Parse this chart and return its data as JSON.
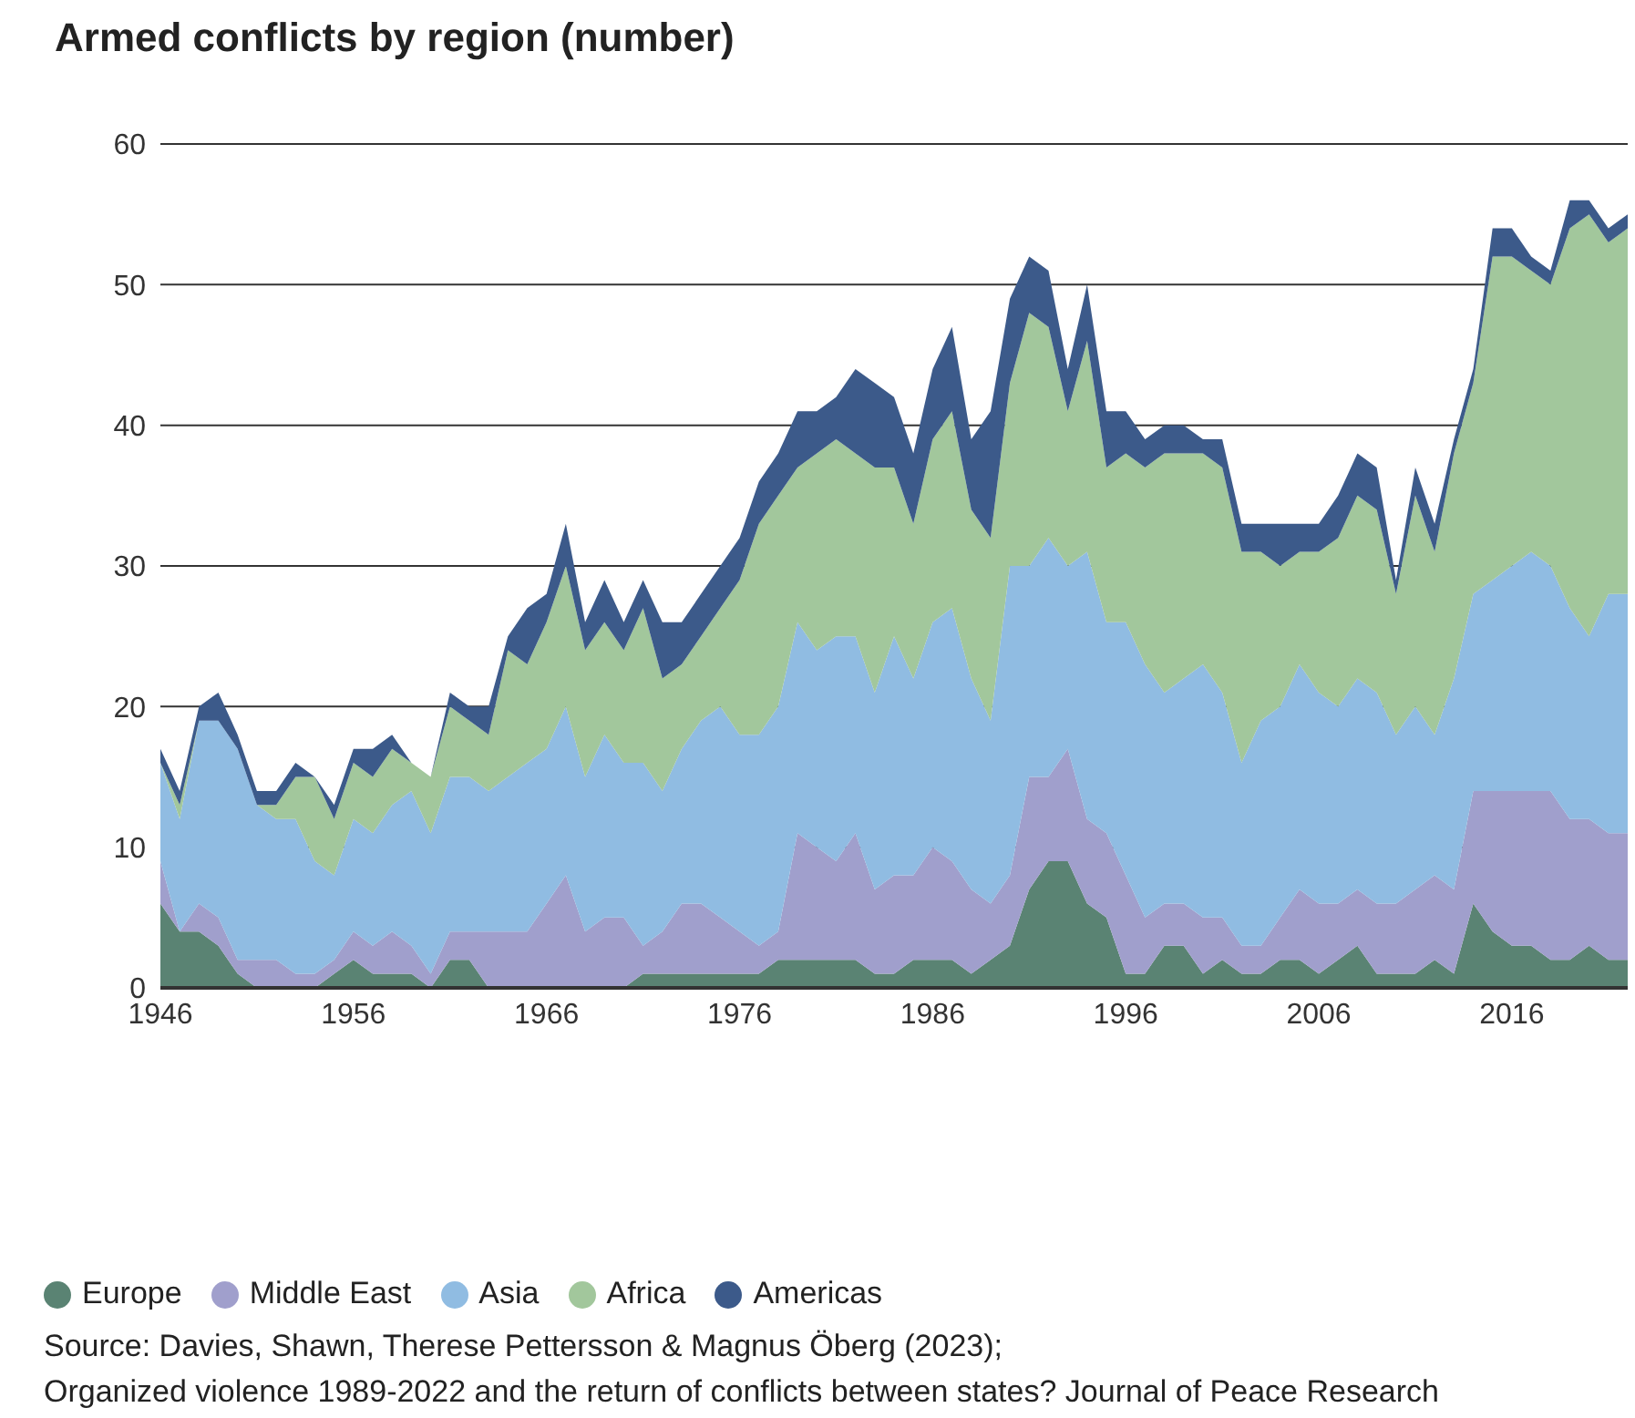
{
  "chart_data": {
    "type": "area",
    "stacked": true,
    "title": "Armed conflicts by region (number)",
    "x": [
      1946,
      1947,
      1948,
      1949,
      1950,
      1951,
      1952,
      1953,
      1954,
      1955,
      1956,
      1957,
      1958,
      1959,
      1960,
      1961,
      1962,
      1963,
      1964,
      1965,
      1966,
      1967,
      1968,
      1969,
      1970,
      1971,
      1972,
      1973,
      1974,
      1975,
      1976,
      1977,
      1978,
      1979,
      1980,
      1981,
      1982,
      1983,
      1984,
      1985,
      1986,
      1987,
      1988,
      1989,
      1990,
      1991,
      1992,
      1993,
      1994,
      1995,
      1996,
      1997,
      1998,
      1999,
      2000,
      2001,
      2002,
      2003,
      2004,
      2005,
      2006,
      2007,
      2008,
      2009,
      2010,
      2011,
      2012,
      2013,
      2014,
      2015,
      2016,
      2017,
      2018,
      2019,
      2020,
      2021,
      2022
    ],
    "series": [
      {
        "name": "Europe",
        "color": "#5a8373",
        "values": [
          6,
          4,
          4,
          3,
          1,
          0,
          0,
          0,
          0,
          1,
          2,
          1,
          1,
          1,
          0,
          2,
          2,
          0,
          0,
          0,
          0,
          0,
          0,
          0,
          0,
          1,
          1,
          1,
          1,
          1,
          1,
          1,
          2,
          2,
          2,
          2,
          2,
          1,
          1,
          2,
          2,
          2,
          1,
          2,
          3,
          7,
          9,
          9,
          6,
          5,
          1,
          1,
          3,
          3,
          1,
          2,
          1,
          1,
          2,
          2,
          1,
          2,
          3,
          1,
          1,
          1,
          2,
          1,
          6,
          4,
          3,
          3,
          2,
          2,
          3,
          2,
          2
        ]
      },
      {
        "name": "Middle East",
        "color": "#a09fcc",
        "values": [
          3,
          0,
          2,
          2,
          1,
          2,
          2,
          1,
          1,
          1,
          2,
          2,
          3,
          2,
          1,
          2,
          2,
          4,
          4,
          4,
          6,
          8,
          4,
          5,
          5,
          2,
          3,
          5,
          5,
          4,
          3,
          2,
          2,
          9,
          8,
          7,
          9,
          6,
          7,
          6,
          8,
          7,
          6,
          4,
          5,
          8,
          6,
          8,
          6,
          6,
          7,
          4,
          3,
          3,
          4,
          3,
          2,
          2,
          3,
          5,
          5,
          4,
          4,
          5,
          5,
          6,
          6,
          6,
          8,
          10,
          11,
          11,
          12,
          10,
          9,
          9,
          9
        ]
      },
      {
        "name": "Asia",
        "color": "#90bce2",
        "values": [
          7,
          8,
          13,
          14,
          15,
          11,
          10,
          11,
          8,
          6,
          8,
          8,
          9,
          11,
          10,
          11,
          11,
          10,
          11,
          12,
          11,
          12,
          11,
          13,
          11,
          13,
          10,
          11,
          13,
          15,
          14,
          15,
          16,
          15,
          14,
          16,
          14,
          14,
          17,
          14,
          16,
          18,
          15,
          13,
          22,
          15,
          17,
          13,
          19,
          15,
          18,
          18,
          15,
          16,
          18,
          16,
          13,
          16,
          15,
          16,
          15,
          14,
          15,
          15,
          12,
          13,
          10,
          15,
          14,
          15,
          16,
          17,
          16,
          15,
          13,
          17,
          17
        ]
      },
      {
        "name": "Africa",
        "color": "#a2c79c",
        "values": [
          0,
          1,
          0,
          0,
          0,
          0,
          1,
          3,
          6,
          4,
          4,
          4,
          4,
          2,
          4,
          5,
          4,
          4,
          9,
          7,
          9,
          10,
          9,
          8,
          8,
          11,
          8,
          6,
          6,
          7,
          11,
          15,
          15,
          11,
          14,
          14,
          13,
          16,
          12,
          11,
          13,
          14,
          12,
          13,
          13,
          18,
          15,
          11,
          15,
          11,
          12,
          14,
          17,
          16,
          15,
          16,
          15,
          12,
          10,
          8,
          10,
          12,
          13,
          13,
          10,
          15,
          13,
          16,
          15,
          23,
          22,
          20,
          20,
          27,
          30,
          25,
          26
        ]
      },
      {
        "name": "Americas",
        "color": "#3c5a8a",
        "values": [
          1,
          1,
          1,
          2,
          1,
          1,
          1,
          1,
          0,
          1,
          1,
          2,
          1,
          0,
          0,
          1,
          1,
          2,
          1,
          4,
          2,
          3,
          2,
          3,
          2,
          2,
          4,
          3,
          3,
          3,
          3,
          3,
          3,
          4,
          3,
          3,
          6,
          6,
          5,
          5,
          5,
          6,
          5,
          9,
          6,
          4,
          4,
          3,
          4,
          4,
          3,
          2,
          2,
          2,
          1,
          2,
          2,
          2,
          3,
          2,
          2,
          3,
          3,
          3,
          1,
          2,
          2,
          1,
          1,
          2,
          2,
          1,
          1,
          2,
          1,
          1,
          1
        ]
      }
    ],
    "xlim": [
      1946,
      2022
    ],
    "xticks": [
      1946,
      1956,
      1966,
      1976,
      1986,
      1996,
      2006,
      2016
    ],
    "ylim": [
      0,
      60
    ],
    "yticks": [
      0,
      10,
      20,
      30,
      40,
      50,
      60
    ],
    "grid": "y",
    "legend": "bottom left",
    "annotations": [
      "Source: Davies, Shawn, Therese Pettersson & Magnus Öberg (2023);",
      "Organized violence 1989-2022 and the return of conflicts between states? Journal of Peace Research"
    ]
  }
}
